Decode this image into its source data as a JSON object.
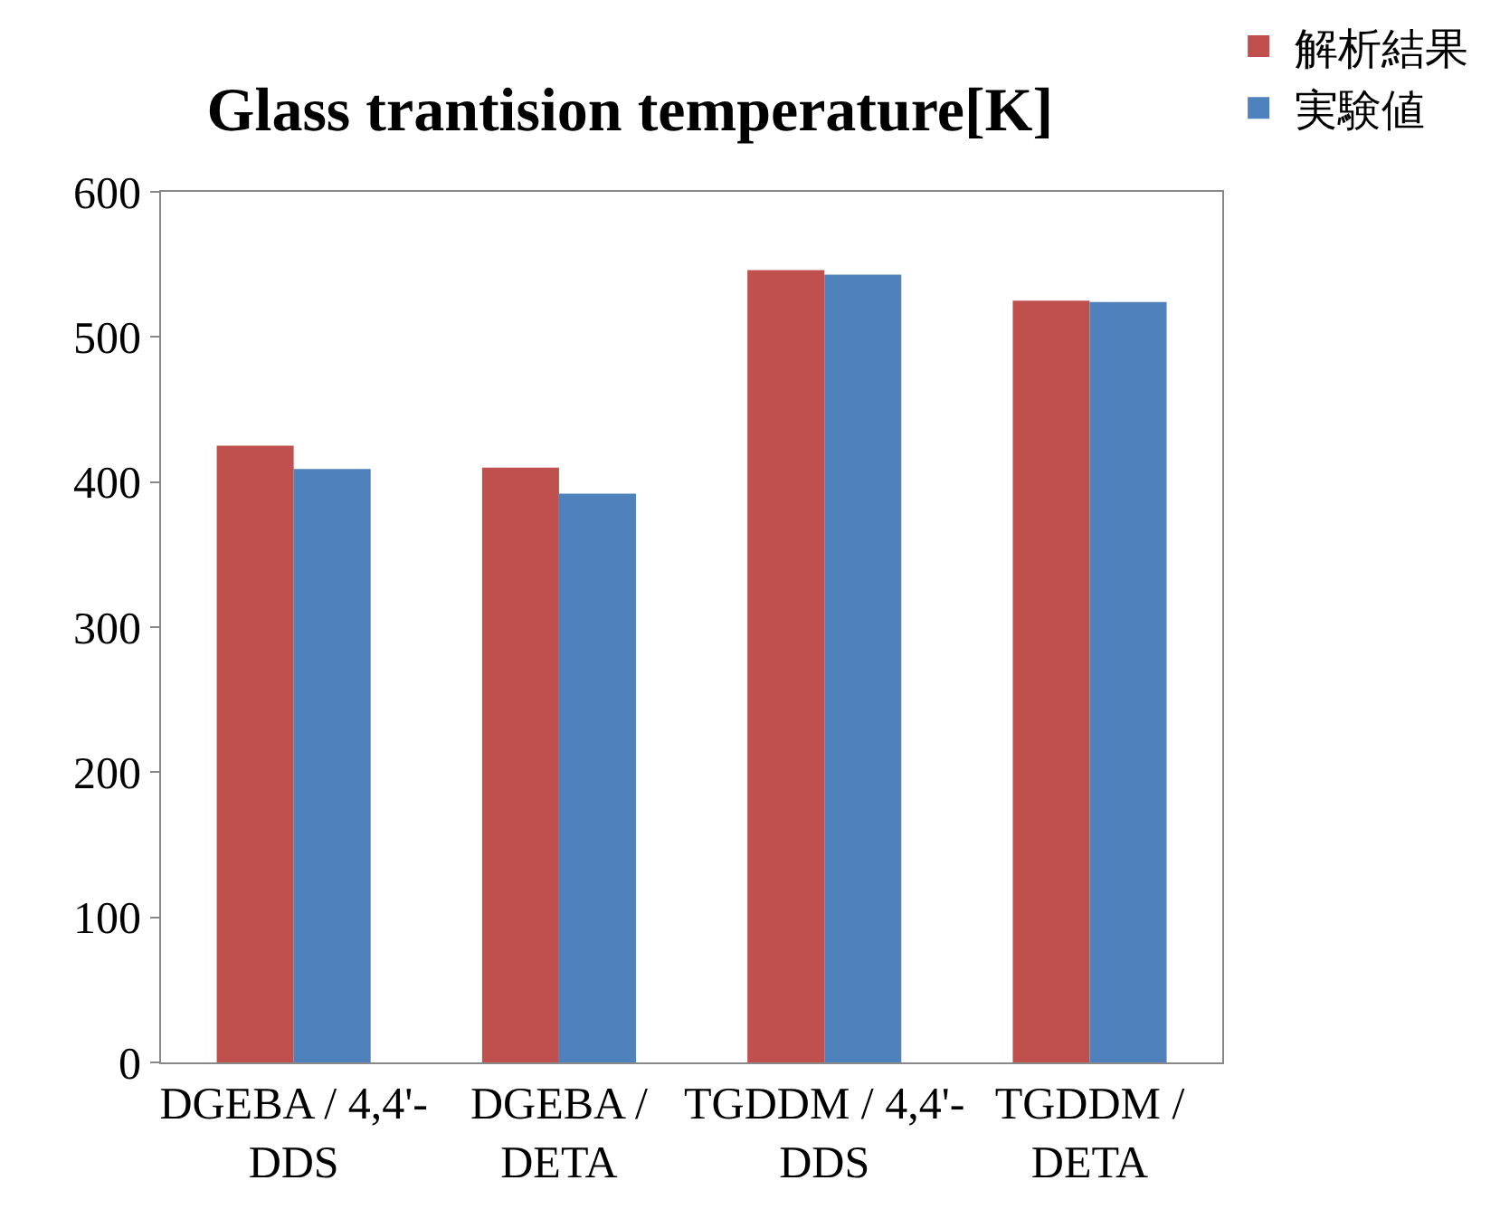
{
  "chart_data": {
    "type": "bar",
    "title": "Glass trantision temperature[K]",
    "categories": [
      "DGEBA / 4,4'-DDS",
      "DGEBA / DETA",
      "TGDDM / 4,4'-DDS",
      "TGDDM / DETA"
    ],
    "series": [
      {
        "name": "解析結果",
        "color": "#c0504d",
        "values": [
          425,
          410,
          546,
          525
        ]
      },
      {
        "name": "実験値",
        "color": "#4f81bd",
        "values": [
          409,
          392,
          543,
          524
        ]
      }
    ],
    "ylim": [
      0,
      600
    ],
    "yticks": [
      0,
      100,
      200,
      300,
      400,
      500,
      600
    ],
    "grid": false,
    "legend": "top right"
  }
}
